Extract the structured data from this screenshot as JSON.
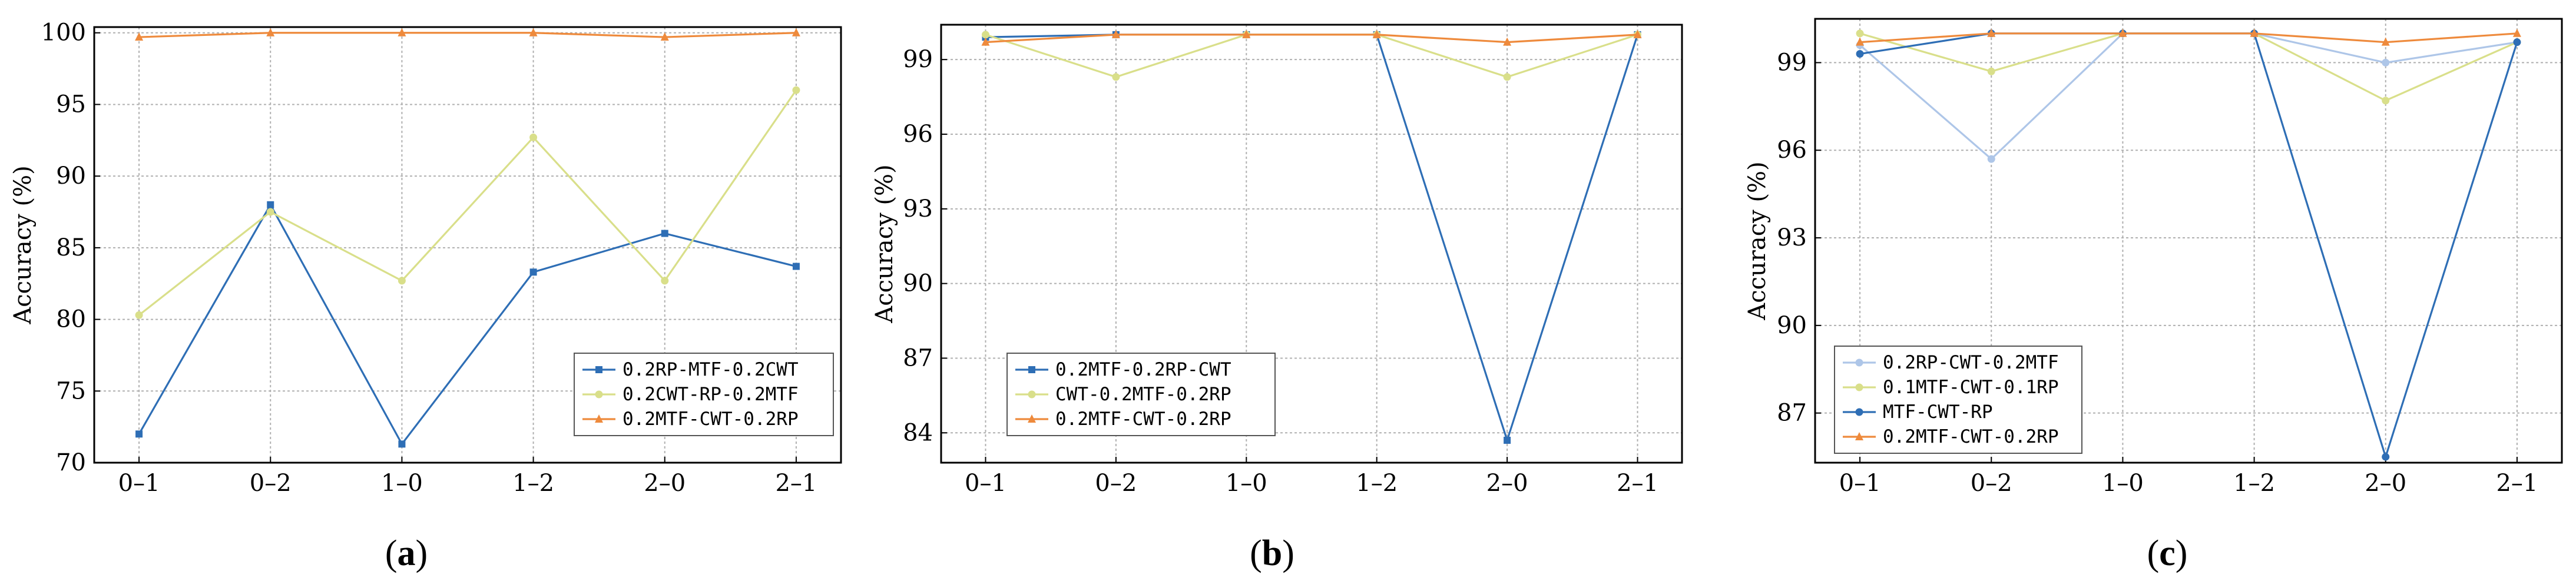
{
  "chart_data": [
    {
      "type": "line",
      "caption": "(a)",
      "caption_prefix": "(",
      "caption_letter": "a",
      "caption_suffix": ")",
      "ylabel": "Accuracy (%)",
      "xlabel": "",
      "categories": [
        "0–1",
        "0–2",
        "1–0",
        "1–2",
        "2–0",
        "2–1"
      ],
      "ylim": [
        70,
        100.4
      ],
      "yticks": [
        70,
        75,
        80,
        85,
        90,
        95,
        100
      ],
      "ytick_labels": [
        "70",
        "75",
        "80",
        "85",
        "90",
        "95",
        "100"
      ],
      "legend_position": "lower-right",
      "grid": true,
      "series": [
        {
          "name": "0.2RP-MTF-0.2CWT",
          "color": "#2e6eb5",
          "marker": "square",
          "values": [
            72.0,
            88.0,
            71.3,
            83.3,
            86.0,
            83.7
          ]
        },
        {
          "name": "0.2CWT-RP-0.2MTF",
          "color": "#d9df8a",
          "marker": "circle",
          "values": [
            80.3,
            87.5,
            82.7,
            92.7,
            82.7,
            96.0
          ]
        },
        {
          "name": "0.2MTF-CWT-0.2RP",
          "color": "#ee8a3c",
          "marker": "triangle",
          "values": [
            99.7,
            100.0,
            100.0,
            100.0,
            99.7,
            100.0
          ]
        }
      ]
    },
    {
      "type": "line",
      "caption": "(b)",
      "caption_prefix": "(",
      "caption_letter": "b",
      "caption_suffix": ")",
      "ylabel": "Accuracy (%)",
      "xlabel": "",
      "categories": [
        "0–1",
        "0–2",
        "1–0",
        "1–2",
        "2–0",
        "2–1"
      ],
      "ylim": [
        82.8,
        100.4
      ],
      "yticks": [
        84,
        87,
        90,
        93,
        96,
        99
      ],
      "ytick_labels": [
        "84",
        "87",
        "90",
        "93",
        "96",
        "99"
      ],
      "legend_position": "lower-left",
      "grid": true,
      "series": [
        {
          "name": "0.2MTF-0.2RP-CWT",
          "color": "#2e6eb5",
          "marker": "square",
          "values": [
            99.9,
            100.0,
            100.0,
            100.0,
            83.7,
            100.0
          ]
        },
        {
          "name": "CWT-0.2MTF-0.2RP",
          "color": "#d9df8a",
          "marker": "circle",
          "values": [
            100.0,
            98.3,
            100.0,
            100.0,
            98.3,
            100.0
          ]
        },
        {
          "name": "0.2MTF-CWT-0.2RP",
          "color": "#ee8a3c",
          "marker": "triangle",
          "values": [
            99.7,
            100.0,
            100.0,
            100.0,
            99.7,
            100.0
          ]
        }
      ]
    },
    {
      "type": "line",
      "caption": "(c)",
      "caption_prefix": "(",
      "caption_letter": "c",
      "caption_suffix": ")",
      "ylabel": "Accuracy (%)",
      "xlabel": "",
      "categories": [
        "0–1",
        "0–2",
        "1–0",
        "1–2",
        "2–0",
        "2–1"
      ],
      "ylim": [
        85.3,
        100.5
      ],
      "yticks": [
        87,
        90,
        93,
        96,
        99
      ],
      "ytick_labels": [
        "87",
        "90",
        "93",
        "96",
        "99"
      ],
      "legend_position": "lower-left",
      "grid": true,
      "series": [
        {
          "name": "0.2RP-CWT-0.2MTF",
          "color": "#aec6e8",
          "marker": "circle",
          "values": [
            99.6,
            95.7,
            100.0,
            100.0,
            99.0,
            99.7
          ]
        },
        {
          "name": "0.1MTF-CWT-0.1RP",
          "color": "#d9df8a",
          "marker": "circle",
          "values": [
            100.0,
            98.7,
            100.0,
            100.0,
            97.7,
            99.7
          ]
        },
        {
          "name": "MTF-CWT-RP",
          "color": "#2e6eb5",
          "marker": "circle",
          "values": [
            99.3,
            100.0,
            100.0,
            100.0,
            85.5,
            99.7
          ]
        },
        {
          "name": "0.2MTF-CWT-0.2RP",
          "color": "#ee8a3c",
          "marker": "triangle",
          "values": [
            99.7,
            100.0,
            100.0,
            100.0,
            99.7,
            100.0
          ]
        }
      ]
    }
  ]
}
